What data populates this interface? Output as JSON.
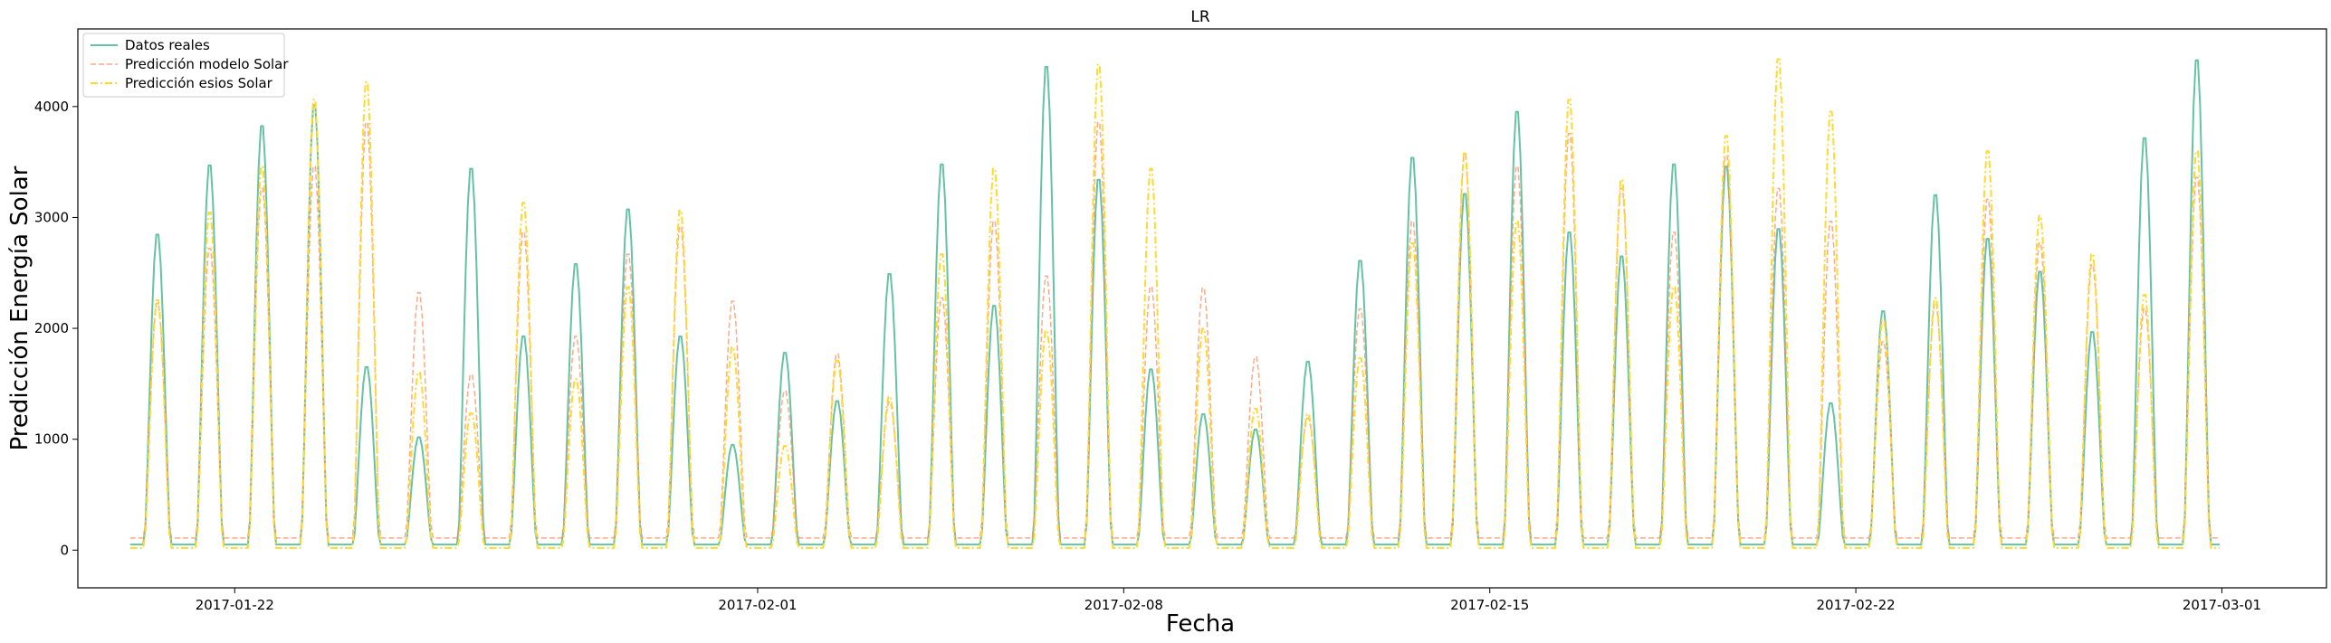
{
  "chart_data": {
    "type": "line",
    "title": "LR",
    "xlabel": "Fecha",
    "ylabel": "Predicción Energía Solar",
    "x_start": "2017-01-20",
    "x_range": [
      "2017-01-19",
      "2017-03-03"
    ],
    "ylim": [
      -340,
      4700
    ],
    "yticks": [
      0,
      1000,
      2000,
      3000,
      4000
    ],
    "xticks": [
      {
        "date": "2017-01-22",
        "label": "2017-01-22"
      },
      {
        "date": "2017-02-01",
        "label": "2017-02-01"
      },
      {
        "date": "2017-02-08",
        "label": "2017-02-08"
      },
      {
        "date": "2017-02-15",
        "label": "2017-02-15"
      },
      {
        "date": "2017-02-22",
        "label": "2017-02-22"
      },
      {
        "date": "2017-03-01",
        "label": "2017-03-01"
      }
    ],
    "grid": false,
    "legend_position": "upper-left",
    "series": [
      {
        "name": "Datos reales",
        "color": "#66c2a5",
        "style": "solid",
        "daily_peaks": [
          2880,
          3510,
          3870,
          4060,
          1670,
          1030,
          3480,
          1950,
          2610,
          3110,
          1950,
          960,
          1800,
          1360,
          2520,
          3520,
          2230,
          4410,
          3380,
          1650,
          1240,
          1100,
          1720,
          2640,
          3580,
          3250,
          4000,
          2900,
          2680,
          3520,
          3500,
          2930,
          1340,
          2180,
          3240,
          2840,
          2540,
          1990,
          3760,
          4470
        ],
        "night_level": 50
      },
      {
        "name": "Predicción modelo Solar",
        "color": "#fc8d62",
        "style": "dashed",
        "daily_peaks": [
          2250,
          2750,
          3300,
          3500,
          3900,
          2350,
          1600,
          2900,
          1950,
          2700,
          2950,
          2270,
          1450,
          1790,
          1350,
          2300,
          3000,
          2500,
          3900,
          2400,
          2390,
          1760,
          1200,
          2200,
          3000,
          3600,
          3500,
          3800,
          3300,
          2900,
          3600,
          3300,
          3000,
          1900,
          2250,
          3200,
          2800,
          2600,
          2200,
          3400
        ],
        "night_level": 110
      },
      {
        "name": "Predicción esios Solar",
        "color": "#ffd92f",
        "style": "dashdot",
        "daily_peaks": [
          2280,
          3080,
          3500,
          4110,
          4270,
          1620,
          1250,
          3170,
          1560,
          2400,
          3100,
          1850,
          950,
          1730,
          1400,
          2700,
          3480,
          2000,
          4430,
          3480,
          2020,
          1290,
          1240,
          1750,
          2800,
          3620,
          3000,
          4110,
          3380,
          2400,
          3780,
          4480,
          4000,
          2100,
          2300,
          3640,
          3050,
          2700,
          2330,
          3640
        ],
        "night_level": 20
      }
    ]
  }
}
